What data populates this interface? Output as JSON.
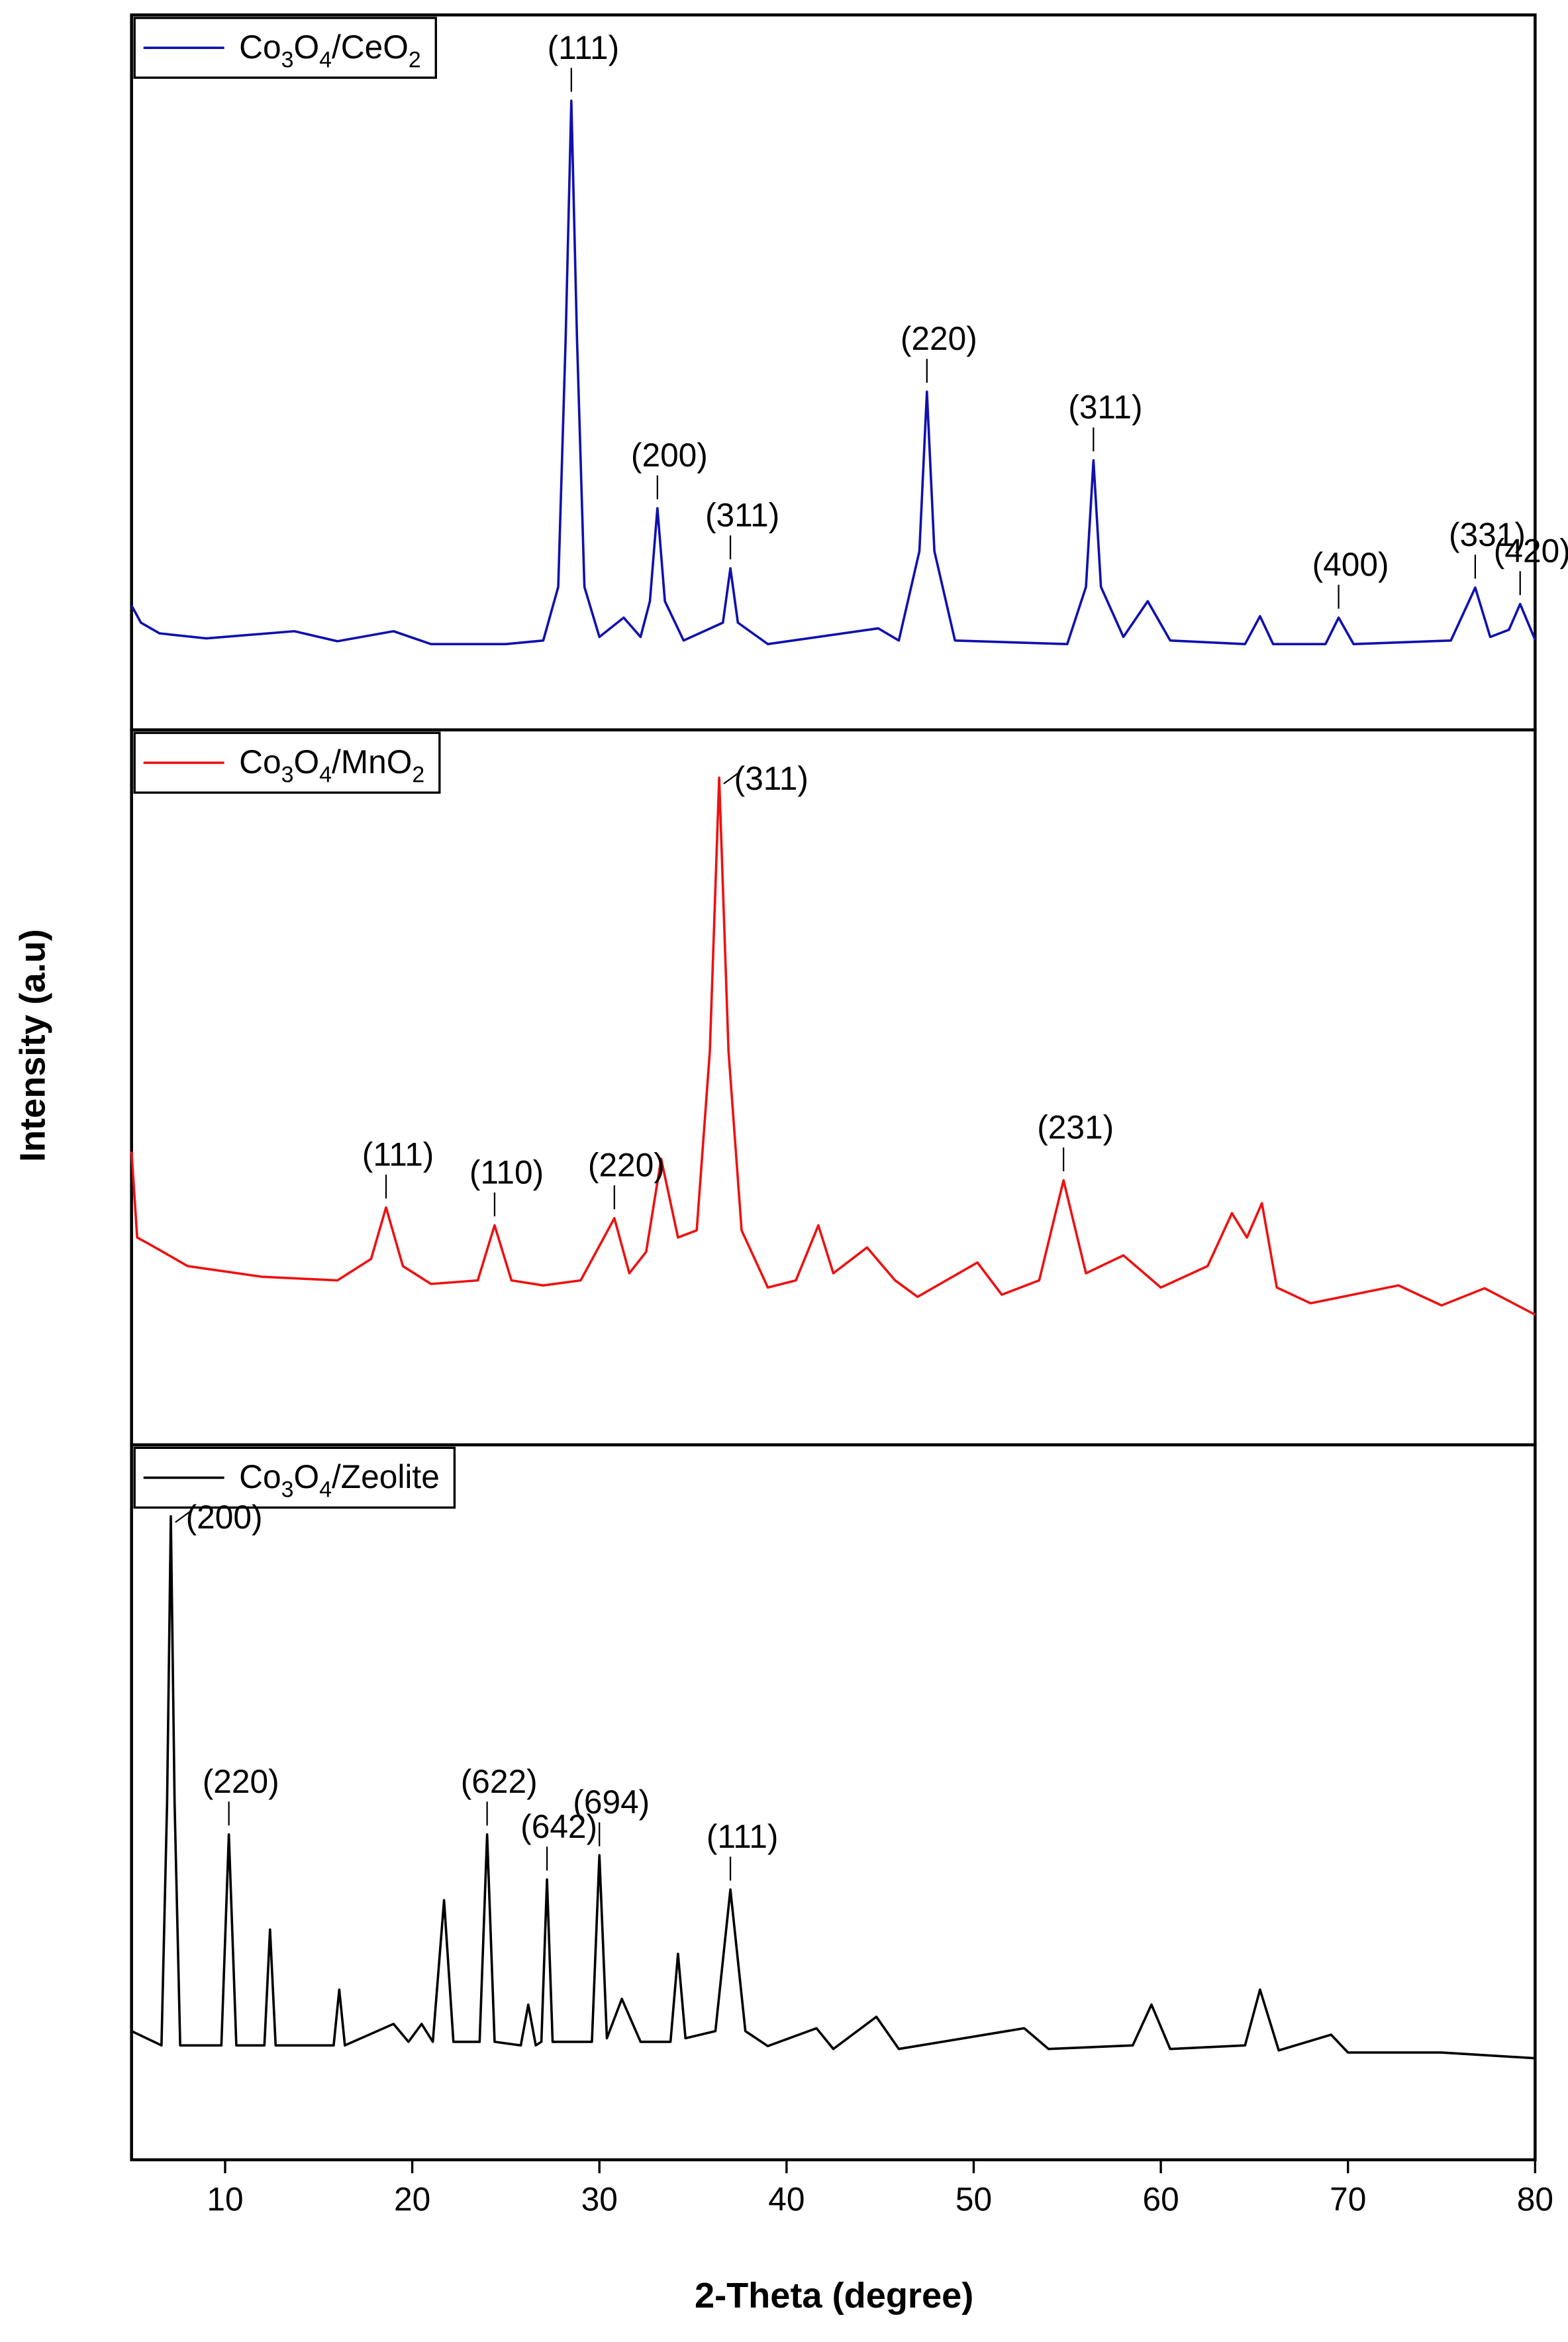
{
  "chart_data": {
    "type": "line",
    "xlabel": "2-Theta (degree)",
    "ylabel": "Intensity (a.u)",
    "xlim": [
      5,
      80
    ],
    "xticks": [
      10,
      20,
      30,
      40,
      50,
      60,
      70,
      80
    ],
    "panels": [
      {
        "ylim": [
          0,
          100
        ],
        "series": [
          {
            "name": "Co3O4/CeO2",
            "color": "#1010b0",
            "x": [
              5,
              5.5,
              6.5,
              9,
              13.7,
              16,
              19,
              21,
              25,
              27,
              27.8,
              28.2,
              28.5,
              28.8,
              29.2,
              30,
              31.3,
              32.2,
              32.7,
              33.1,
              33.5,
              34.5,
              36.6,
              37.0,
              37.4,
              39,
              44.9,
              46,
              47.1,
              47.5,
              47.9,
              49,
              55,
              56.0,
              56.4,
              56.8,
              58,
              59.3,
              60.5,
              64.5,
              65.3,
              66,
              68.8,
              69.5,
              70.3,
              75.5,
              76.8,
              77.6,
              78.6,
              79.2,
              80
            ],
            "values": [
              17.4,
              15,
              13.5,
              12.8,
              13.8,
              12.4,
              13.8,
              12,
              12,
              12.5,
              20,
              55,
              88,
              55,
              20,
              13,
              15.7,
              13,
              18,
              31,
              18,
              12.5,
              15,
              22.6,
              15,
              12,
              14.2,
              12.5,
              25,
              47.3,
              25,
              12.5,
              12,
              20,
              37.7,
              20,
              13,
              18,
              12.5,
              12,
              15.9,
              12,
              12,
              15.7,
              12,
              12.5,
              19.9,
              13,
              14,
              17.6,
              12.6
            ]
          }
        ],
        "annotations": [
          {
            "text": "(111)",
            "x": 28.5,
            "y": 88
          },
          {
            "text": "(200)",
            "x": 33.1,
            "y": 31
          },
          {
            "text": "(311)",
            "x": 37.0,
            "y": 22.6
          },
          {
            "text": "(220)",
            "x": 47.5,
            "y": 47.3
          },
          {
            "text": "(311)",
            "x": 56.4,
            "y": 37.7
          },
          {
            "text": "(400)",
            "x": 69.5,
            "y": 15.7
          },
          {
            "text": "(331)",
            "x": 76.8,
            "y": 19.9
          },
          {
            "text": "(420)",
            "x": 79.2,
            "y": 17.6
          }
        ]
      },
      {
        "ylim": [
          0,
          100
        ],
        "series": [
          {
            "name": "Co3O4/MnO2",
            "color": "#ee1111",
            "x": [
              5,
              5.3,
              6,
              8,
              12,
              16,
              17.8,
              18.6,
              19.5,
              21,
              23.5,
              24.4,
              25.3,
              27,
              29,
              30.8,
              31.6,
              32.5,
              33.3,
              34.2,
              35.2,
              35.9,
              36.4,
              36.9,
              37.6,
              39,
              40.5,
              41.7,
              42.5,
              44.3,
              45.8,
              47,
              50.2,
              51.5,
              53.5,
              54.8,
              56,
              58,
              60,
              62.5,
              63.8,
              64.6,
              65.4,
              66.2,
              68,
              72.7,
              75,
              77.3,
              80
            ],
            "values": [
              41,
              29,
              28,
              25,
              23.5,
              23,
              26,
              33.2,
              25,
              22.5,
              23,
              30.7,
              23,
              22.3,
              23,
              31.7,
              24,
              27,
              40,
              29,
              30,
              55,
              93.3,
              55,
              30,
              22,
              23,
              30.7,
              24,
              27.6,
              23,
              20.7,
              25.5,
              21,
              23,
              37,
              24,
              26.5,
              22,
              25,
              32.4,
              29,
              33.8,
              22,
              19.8,
              22.3,
              19.5,
              21.9,
              18.2
            ]
          }
        ],
        "annotations": [
          {
            "text": "(111)",
            "x": 18.6,
            "y": 33.2
          },
          {
            "text": "(110)",
            "x": 24.4,
            "y": 30.7
          },
          {
            "text": "(220)",
            "x": 30.8,
            "y": 31.7
          },
          {
            "text": "(311)",
            "x": 36.4,
            "y": 93.3
          },
          {
            "text": "(231)",
            "x": 54.8,
            "y": 37
          }
        ]
      },
      {
        "ylim": [
          0,
          100
        ],
        "series": [
          {
            "name": "Co3O4/Zeolite",
            "color": "#000000",
            "x": [
              5,
              6.6,
              6.9,
              7.1,
              7.3,
              7.6,
              9.8,
              10.2,
              10.6,
              12.1,
              12.4,
              12.7,
              15.8,
              16.1,
              16.4,
              19,
              19.8,
              20.5,
              21.1,
              21.7,
              22.2,
              23.6,
              24.0,
              24.4,
              25.8,
              26.2,
              26.6,
              26.9,
              27.2,
              27.5,
              29.6,
              30.0,
              30.4,
              31.2,
              32.2,
              33.8,
              34.2,
              34.6,
              36.2,
              37.0,
              37.8,
              39,
              41.6,
              42.5,
              44.8,
              46,
              52.7,
              54,
              58.5,
              59.5,
              60.5,
              64.5,
              65.3,
              66.3,
              69.1,
              70,
              75,
              80
            ],
            "values": [
              18,
              16,
              50,
              90,
              50,
              16,
              16,
              45.5,
              16,
              16,
              32.2,
              16,
              16,
              23.8,
              16,
              19,
              16.5,
              19,
              16.5,
              36.3,
              16.5,
              16.5,
              45.5,
              16.5,
              16,
              21.7,
              16,
              16.5,
              39.2,
              16.5,
              16.5,
              42.6,
              17,
              22.5,
              16.5,
              16.5,
              28.8,
              17,
              18,
              37.8,
              18,
              15.9,
              18.4,
              15.5,
              20,
              15.5,
              18.4,
              15.5,
              16,
              21.7,
              15.5,
              16,
              23.8,
              15.3,
              17.5,
              15,
              15,
              14.2
            ]
          }
        ],
        "annotations": [
          {
            "text": "(200)",
            "x": 7.1,
            "y": 90
          },
          {
            "text": "(220)",
            "x": 10.2,
            "y": 45.5
          },
          {
            "text": "(622)",
            "x": 24.0,
            "y": 45.5
          },
          {
            "text": "(642)",
            "x": 27.2,
            "y": 39.2
          },
          {
            "text": "(694)",
            "x": 30.0,
            "y": 42.6
          },
          {
            "text": "(111)",
            "x": 37.0,
            "y": 37.8
          }
        ]
      }
    ]
  }
}
